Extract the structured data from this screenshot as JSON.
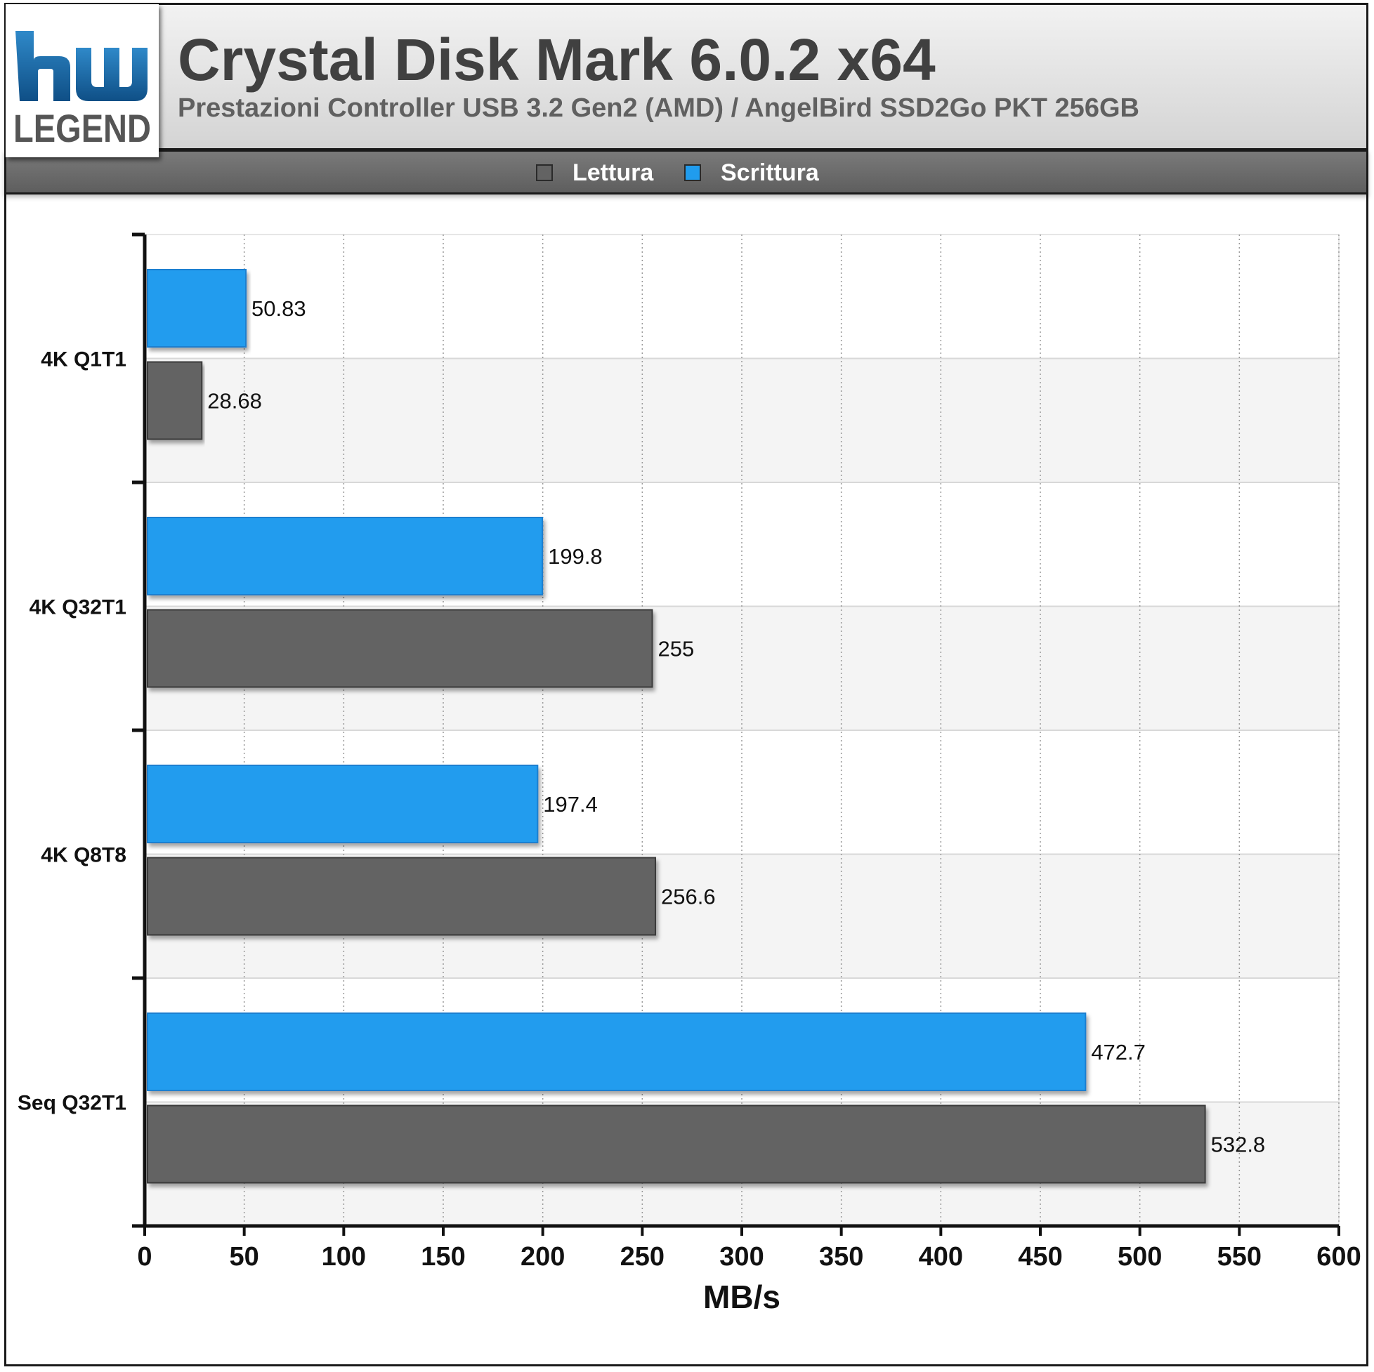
{
  "logo": {
    "text": "LEGEND",
    "icon": "hwlegend-logo-icon"
  },
  "header": {
    "title": "Crystal Disk Mark 6.0.2 x64",
    "subtitle": "Prestazioni Controller USB 3.2 Gen2 (AMD) / AngelBird SSD2Go PKT 256GB"
  },
  "colors": {
    "lettura": "#636363",
    "scrittura": "#209cee"
  },
  "chart_data": {
    "type": "bar",
    "orientation": "horizontal",
    "categories": [
      "4K Q1T1",
      "4K Q32T1",
      "4K Q8T8",
      "Seq Q32T1"
    ],
    "series": [
      {
        "name": "Lettura",
        "color": "#636363",
        "values": [
          28.68,
          255,
          256.6,
          532.8
        ]
      },
      {
        "name": "Scrittura",
        "color": "#209cee",
        "values": [
          50.83,
          199.8,
          197.4,
          472.7
        ]
      }
    ],
    "data_labels": {
      "Lettura": [
        "28.68",
        "255",
        "256.6",
        "532.8"
      ],
      "Scrittura": [
        "50.83",
        "199.8",
        "197.4",
        "472.7"
      ]
    },
    "xlabel": "MB/s",
    "ylabel": "",
    "xlim": [
      0,
      600
    ],
    "xticks": [
      0,
      50,
      100,
      150,
      200,
      250,
      300,
      350,
      400,
      450,
      500,
      550,
      600
    ],
    "grid": true,
    "legend_position": "top"
  }
}
